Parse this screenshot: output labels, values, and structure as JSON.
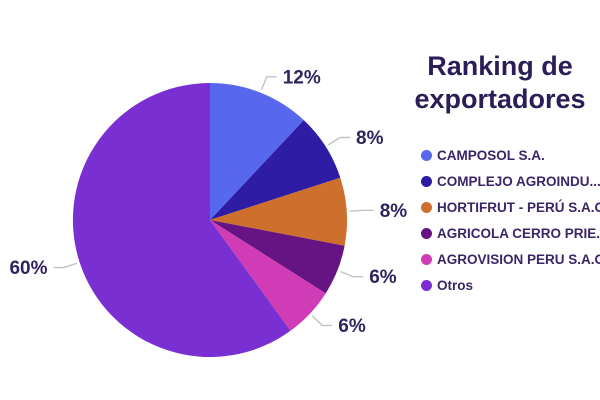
{
  "title": "Ranking de exportadores",
  "chart_data": {
    "type": "pie",
    "title": "Ranking de exportadores",
    "start_angle_deg": 0,
    "direction": "clockwise",
    "legend_position": "right",
    "data_labels": "outside-percent",
    "background_color": "#ffffff",
    "slices": [
      {
        "legend_label": "CAMPOSOL S.A.",
        "value_pct": 12,
        "data_label": "12%",
        "color": "#5868ee"
      },
      {
        "legend_label": "COMPLEJO AGROINDU...",
        "value_pct": 8,
        "data_label": "8%",
        "color": "#2f1ca5"
      },
      {
        "legend_label": "HORTIFRUT - PERÚ S.A.C.",
        "value_pct": 8,
        "data_label": "8%",
        "color": "#ce702d"
      },
      {
        "legend_label": "AGRICOLA CERRO PRIE...",
        "value_pct": 6,
        "data_label": "6%",
        "color": "#661383"
      },
      {
        "legend_label": "AGROVISION PERU S.A.C.",
        "value_pct": 6,
        "data_label": "6%",
        "color": "#d03cb5"
      },
      {
        "legend_label": "Otros",
        "value_pct": 60,
        "data_label": "60%",
        "color": "#7a2fd2"
      }
    ],
    "colors": {
      "title_text": "#2b1d57",
      "label_text": "#30235f",
      "legend_text": "#3a2666",
      "leader_line": "#c2c2c2"
    }
  }
}
